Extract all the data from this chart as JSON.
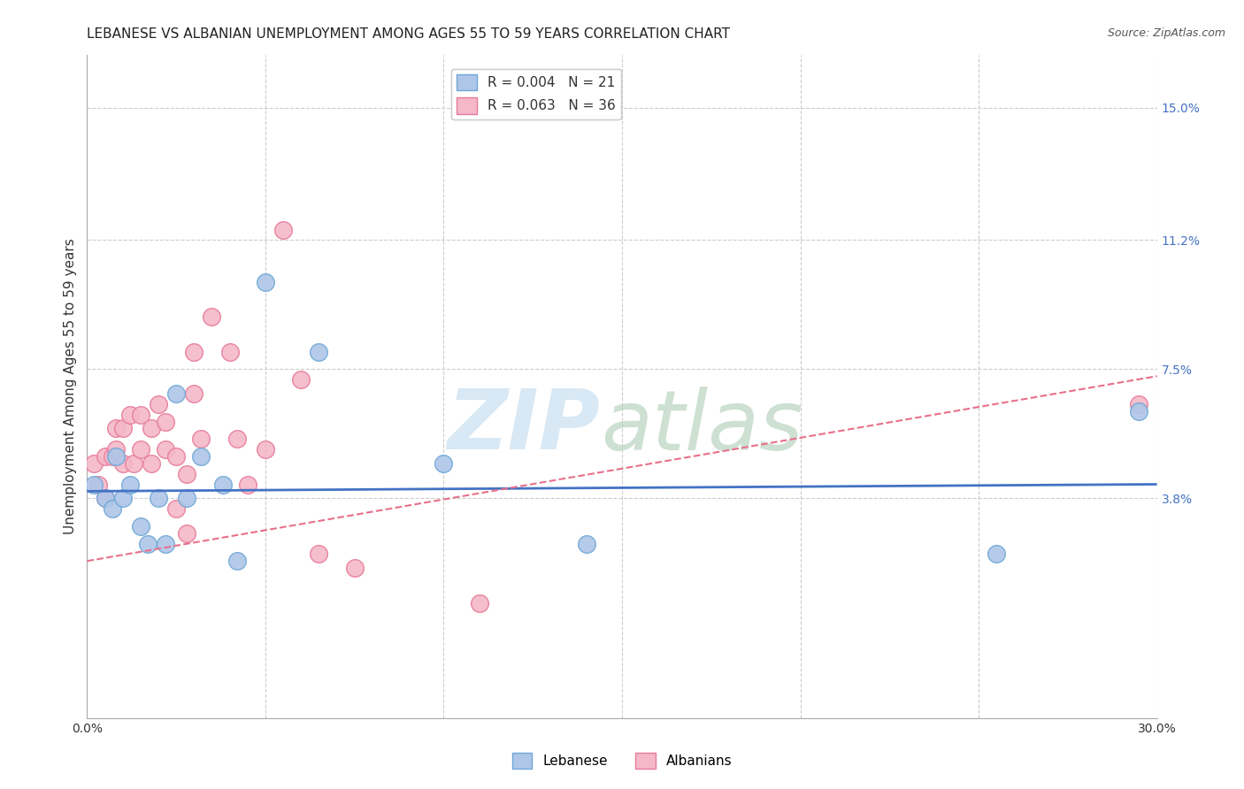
{
  "title": "LEBANESE VS ALBANIAN UNEMPLOYMENT AMONG AGES 55 TO 59 YEARS CORRELATION CHART",
  "source": "Source: ZipAtlas.com",
  "ylabel": "Unemployment Among Ages 55 to 59 years",
  "xlim": [
    0.0,
    0.3
  ],
  "ylim": [
    -0.025,
    0.165
  ],
  "xticks": [
    0.0,
    0.05,
    0.1,
    0.15,
    0.2,
    0.25,
    0.3
  ],
  "xticklabels": [
    "0.0%",
    "",
    "",
    "",
    "",
    "",
    "30.0%"
  ],
  "ytick_positions": [
    0.038,
    0.075,
    0.112,
    0.15
  ],
  "ytick_labels": [
    "3.8%",
    "7.5%",
    "11.2%",
    "15.0%"
  ],
  "legend_entries": [
    {
      "label": "R = 0.004   N = 21",
      "color": "#aec6e8"
    },
    {
      "label": "R = 0.063   N = 36",
      "color": "#f4b8c8"
    }
  ],
  "lebanese_x": [
    0.002,
    0.005,
    0.007,
    0.008,
    0.01,
    0.012,
    0.015,
    0.017,
    0.02,
    0.022,
    0.025,
    0.028,
    0.032,
    0.038,
    0.042,
    0.05,
    0.065,
    0.1,
    0.14,
    0.255,
    0.295
  ],
  "lebanese_y": [
    0.042,
    0.038,
    0.035,
    0.05,
    0.038,
    0.042,
    0.03,
    0.025,
    0.038,
    0.025,
    0.068,
    0.038,
    0.05,
    0.042,
    0.02,
    0.1,
    0.08,
    0.048,
    0.025,
    0.022,
    0.063
  ],
  "albanians_x": [
    0.002,
    0.003,
    0.005,
    0.005,
    0.007,
    0.008,
    0.008,
    0.01,
    0.01,
    0.012,
    0.013,
    0.015,
    0.015,
    0.018,
    0.018,
    0.02,
    0.022,
    0.022,
    0.025,
    0.025,
    0.028,
    0.028,
    0.03,
    0.03,
    0.032,
    0.035,
    0.04,
    0.042,
    0.045,
    0.05,
    0.055,
    0.06,
    0.065,
    0.075,
    0.11,
    0.295
  ],
  "albanians_y": [
    0.048,
    0.042,
    0.05,
    0.038,
    0.05,
    0.052,
    0.058,
    0.048,
    0.058,
    0.062,
    0.048,
    0.052,
    0.062,
    0.048,
    0.058,
    0.065,
    0.052,
    0.06,
    0.035,
    0.05,
    0.045,
    0.028,
    0.08,
    0.068,
    0.055,
    0.09,
    0.08,
    0.055,
    0.042,
    0.052,
    0.115,
    0.072,
    0.022,
    0.018,
    0.008,
    0.065
  ],
  "lebanese_color": "#aec6e8",
  "lebanese_edge": "#6fa8d6",
  "albanians_color": "#f4b8c8",
  "albanians_edge": "#e87a9a",
  "trendline_lebanese_color": "#4472c4",
  "trendline_albanians_color": "#e8708a",
  "background_color": "#ffffff",
  "grid_color": "#cccccc",
  "title_fontsize": 11,
  "axis_label_fontsize": 11,
  "tick_fontsize": 10,
  "leb_trend_start_y": 0.04,
  "leb_trend_end_y": 0.042,
  "alb_trend_start_y": 0.02,
  "alb_trend_end_y": 0.073
}
